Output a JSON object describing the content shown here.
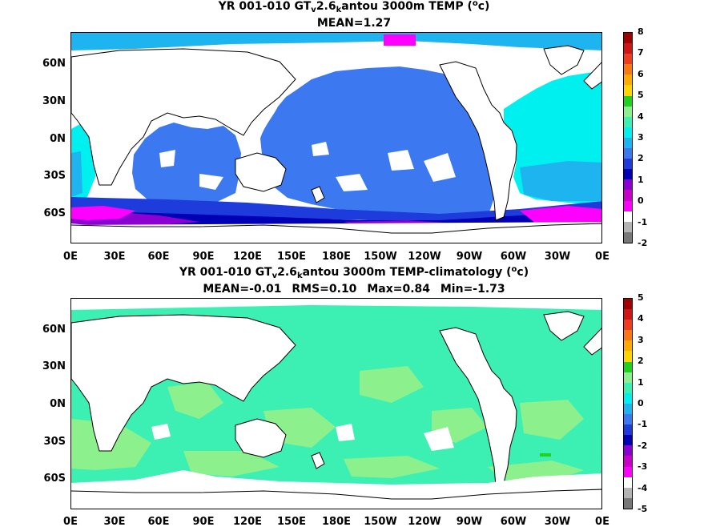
{
  "top": {
    "title_prefix": "YR 001-010 GT",
    "title_sub_v": "v",
    "title_mid": "2.6",
    "title_sub_k": "k",
    "title_suffix": "antou 3000m TEMP (",
    "title_unit_sup": "o",
    "title_unit_end": "c)",
    "mean": "MEAN=1.27",
    "colorbar_ticks": [
      "8",
      "7",
      "6",
      "5",
      "4",
      "3",
      "2",
      "1",
      "0",
      "-1",
      "-2"
    ],
    "colorbar_colors": [
      "#a00000",
      "#d21414",
      "#f03c1e",
      "#fa7814",
      "#ffaa00",
      "#ffd400",
      "#1ed21e",
      "#8cf08c",
      "#3cf0b4",
      "#00f0f0",
      "#1eb4f0",
      "#3c78f0",
      "#1e3cdc",
      "#0000b4",
      "#8c00d2",
      "#c800c8",
      "#ff00ff",
      "#ffffff",
      "#b4b4b4",
      "#787878"
    ]
  },
  "bottom": {
    "title_prefix": "YR 001-010 GT",
    "title_sub_v": "v",
    "title_mid": "2.6",
    "title_sub_k": "k",
    "title_suffix": "antou 3000m TEMP-climatology (",
    "title_unit_sup": "o",
    "title_unit_end": "c)",
    "mean": "MEAN=-0.01",
    "rms": "RMS=0.10",
    "max": "Max=0.84",
    "min": "Min=-1.73",
    "colorbar_ticks": [
      "5",
      "4",
      "3",
      "2",
      "1",
      "0",
      "-1",
      "-2",
      "-3",
      "-4",
      "-5"
    ],
    "colorbar_colors": [
      "#a00000",
      "#d21414",
      "#f03c1e",
      "#fa7814",
      "#ffaa00",
      "#ffd400",
      "#1ed21e",
      "#8cf08c",
      "#3cf0b4",
      "#00f0f0",
      "#1eb4f0",
      "#3c78f0",
      "#1e3cdc",
      "#0000b4",
      "#8c00d2",
      "#c800c8",
      "#ff00ff",
      "#ffffff",
      "#b4b4b4",
      "#787878"
    ]
  },
  "lat_labels": [
    "60N",
    "30N",
    "0N",
    "30S",
    "60S"
  ],
  "lon_labels": [
    "0E",
    "30E",
    "60E",
    "90E",
    "120E",
    "150E",
    "180E",
    "150W",
    "120W",
    "90W",
    "60W",
    "30W",
    "0E"
  ],
  "colors": {
    "ocean_top": "#3c78f0",
    "ocean_top_light": "#00f0f0",
    "ocean_top_mid": "#1eb4f0",
    "southern_dark": "#1e3cdc",
    "southern_navy": "#0000b4",
    "southern_purple": "#8c00d2",
    "southern_magenta": "#ff00ff",
    "ocean_bottom": "#3cf0b4",
    "ocean_bottom_light": "#8cf08c",
    "land": "#ffffff",
    "coast": "#000000"
  }
}
